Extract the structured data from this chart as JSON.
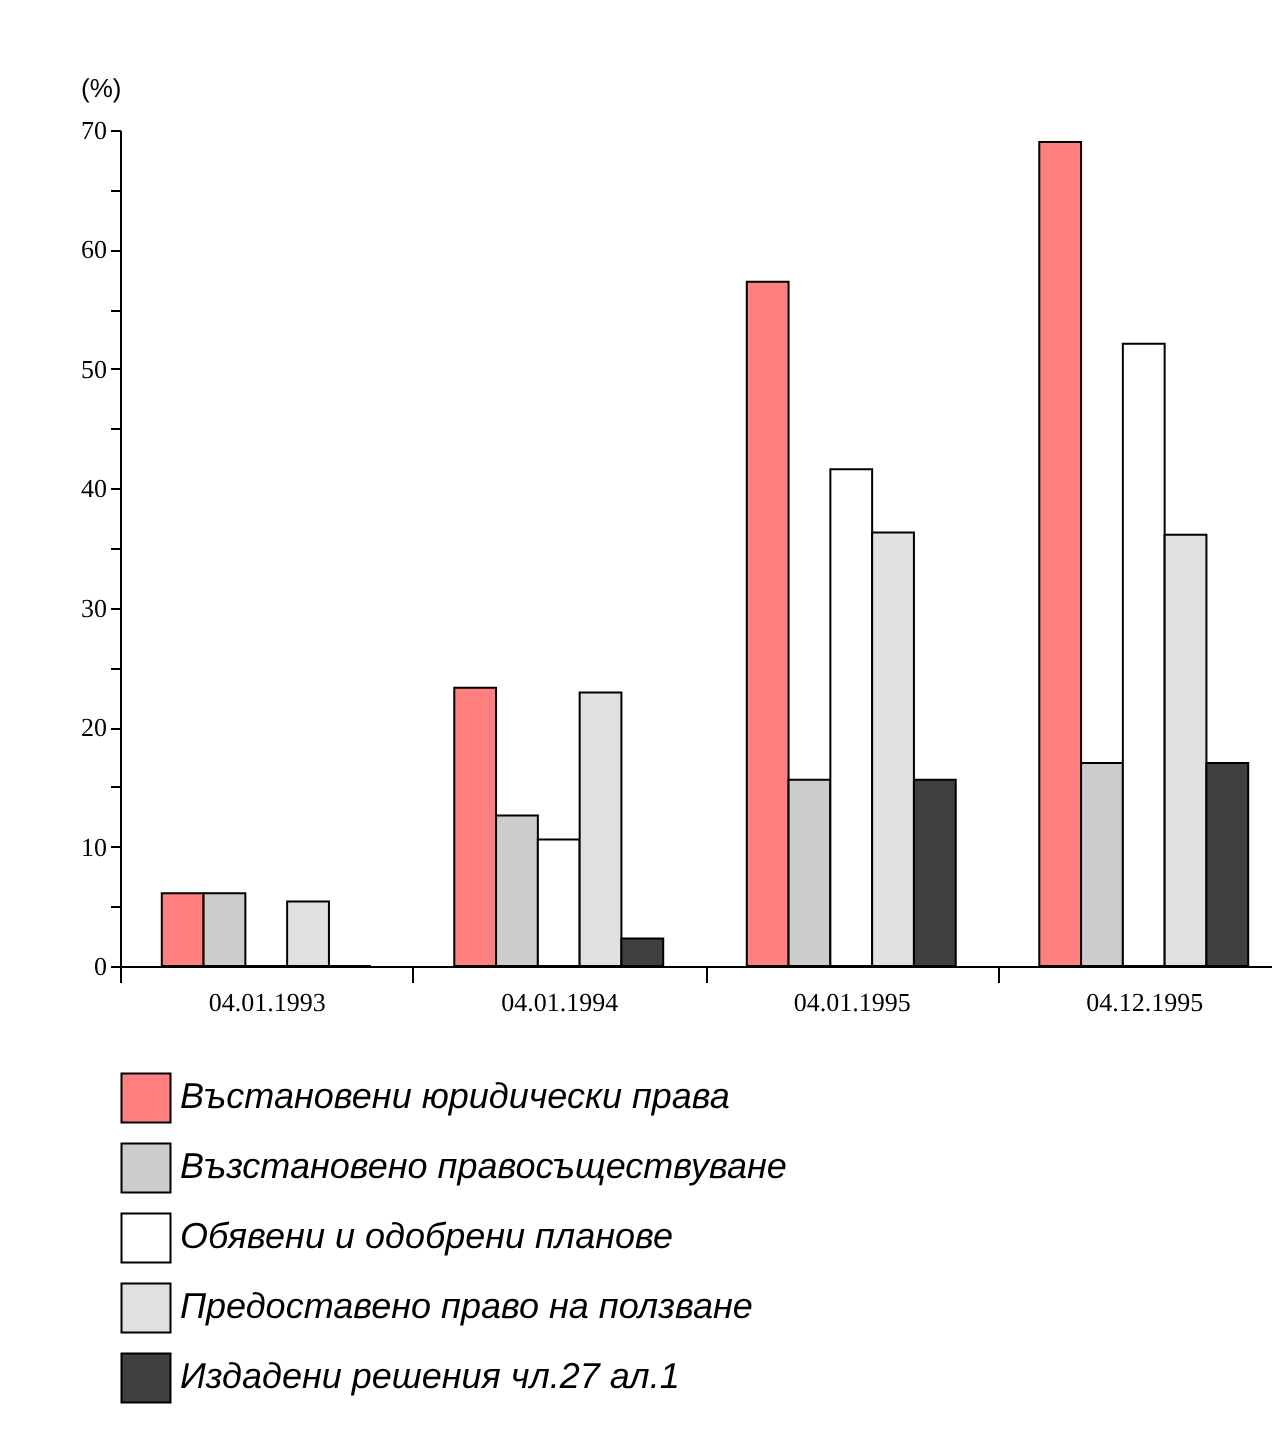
{
  "chart_data": {
    "type": "bar",
    "ylabel": "(%)",
    "categories": [
      "04.01.1993",
      "04.01.1994",
      "04.01.1995",
      "04.12.1995"
    ],
    "series": [
      {
        "name": "Въстановени юридически права",
        "color": "#ff7f7f",
        "values": [
          6.1,
          23.3,
          57.3,
          69.0
        ]
      },
      {
        "name": "Възстановено правосъществуване",
        "color": "#cccccc",
        "values": [
          6.1,
          12.6,
          15.6,
          17.0
        ]
      },
      {
        "name": "Обявени и одобрени планове",
        "color": "#ffffff",
        "values": [
          0,
          10.6,
          41.6,
          52.1
        ]
      },
      {
        "name": "Предоставено право на ползване",
        "color": "#e0e0e0",
        "values": [
          5.4,
          22.9,
          36.3,
          36.1
        ]
      },
      {
        "name": "Издадени решения чл.27 ал.1",
        "color": "#404040",
        "values": [
          0,
          2.3,
          15.6,
          17.0
        ]
      }
    ],
    "ylim": [
      0,
      70
    ],
    "yticks": [
      0,
      {
        "value": 5,
        "label": null
      },
      10,
      {
        "value": 15,
        "label": null
      },
      20,
      {
        "value": 25,
        "label": null
      },
      30,
      {
        "value": 35,
        "label": null
      },
      40,
      {
        "value": 45,
        "label": null
      },
      50,
      {
        "value": 55,
        "label": null
      },
      60,
      {
        "value": 65,
        "label": null
      },
      70
    ],
    "grid": false,
    "legend": "bottom"
  }
}
